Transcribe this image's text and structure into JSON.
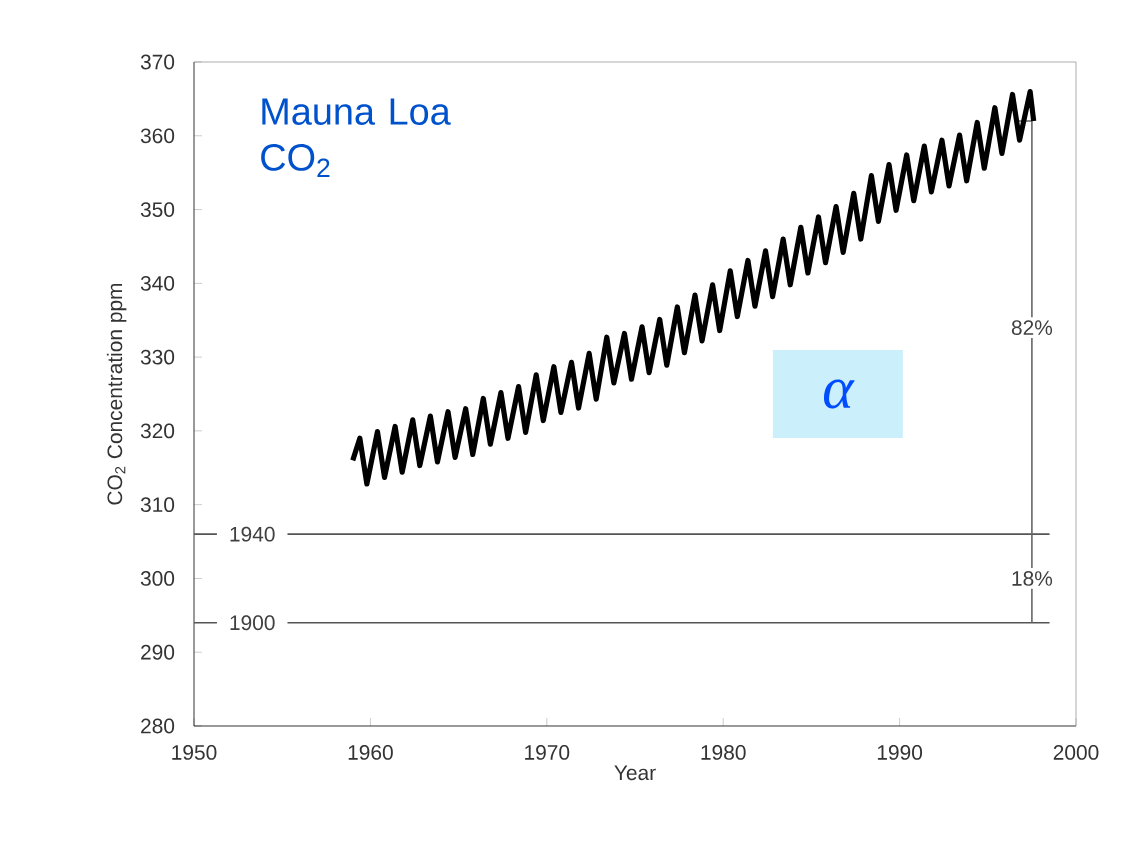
{
  "chart_data": {
    "type": "line",
    "title": "Mauna Loa CO$_{2}$",
    "xlabel": "Year",
    "ylabel": "CO$_{2}$ Concentration  ppm",
    "xlim": [
      1950,
      2000
    ],
    "xticks": [
      1950,
      1960,
      1970,
      1980,
      1990,
      2000
    ],
    "ylim": [
      280,
      370
    ],
    "yticks": [
      280,
      290,
      300,
      310,
      320,
      330,
      340,
      350,
      360,
      370
    ],
    "grid": false,
    "marker": "none",
    "line_style": "solid",
    "ref_lines": [
      {
        "axis": "y",
        "value": 306,
        "color": "#555555"
      },
      {
        "axis": "y",
        "value": 294,
        "color": "#555555"
      }
    ],
    "annotations": [
      "α",
      {
        "text": "1940",
        "y": 306
      },
      {
        "text": "1900",
        "y": 294
      },
      {
        "text": "82%",
        "x": 1997.5,
        "y": 334
      },
      {
        "text": "18%",
        "x": 1997.5,
        "y": 300
      }
    ],
    "series": [
      {
        "color": "#666666",
        "x": [
          1997.5,
          1997.5,
          1996.7
        ],
        "values": [
          294,
          362,
          362
        ]
      },
      {
        "color": "#000000",
        "x": [
          1959.0,
          1959.4,
          1959.8,
          1960.4,
          1960.8,
          1961.4,
          1961.8,
          1962.4,
          1962.8,
          1963.4,
          1963.8,
          1964.4,
          1964.8,
          1965.4,
          1965.8,
          1966.4,
          1966.8,
          1967.4,
          1967.8,
          1968.4,
          1968.8,
          1969.4,
          1969.8,
          1970.4,
          1970.8,
          1971.4,
          1971.8,
          1972.4,
          1972.8,
          1973.4,
          1973.8,
          1974.4,
          1974.8,
          1975.4,
          1975.8,
          1976.4,
          1976.8,
          1977.4,
          1977.8,
          1978.4,
          1978.8,
          1979.4,
          1979.8,
          1980.4,
          1980.8,
          1981.4,
          1981.8,
          1982.4,
          1982.8,
          1983.4,
          1983.8,
          1984.4,
          1984.8,
          1985.4,
          1985.8,
          1986.4,
          1986.8,
          1987.4,
          1987.8,
          1988.4,
          1988.8,
          1989.4,
          1989.8,
          1990.4,
          1990.8,
          1991.4,
          1991.8,
          1992.4,
          1992.8,
          1993.4,
          1993.8,
          1994.4,
          1994.8,
          1995.4,
          1995.8,
          1996.4,
          1996.8,
          1997.4,
          1997.6
        ],
        "values": [
          316.0,
          319.0,
          312.8,
          319.9,
          313.7,
          320.6,
          314.4,
          321.5,
          315.3,
          322.0,
          315.8,
          322.6,
          316.4,
          323.0,
          316.8,
          324.4,
          318.2,
          325.2,
          319.0,
          326.0,
          319.8,
          327.6,
          321.4,
          328.7,
          322.5,
          329.3,
          323.1,
          330.5,
          324.3,
          332.7,
          326.5,
          333.2,
          327.0,
          334.1,
          327.9,
          335.1,
          328.9,
          336.8,
          330.6,
          338.4,
          332.2,
          339.8,
          333.6,
          341.7,
          335.5,
          343.1,
          336.9,
          344.4,
          338.2,
          346.0,
          339.8,
          347.6,
          341.4,
          349.0,
          342.8,
          350.4,
          344.2,
          352.2,
          346.0,
          354.6,
          348.4,
          356.1,
          349.9,
          357.4,
          351.2,
          358.6,
          352.4,
          359.4,
          353.2,
          360.1,
          353.9,
          361.8,
          355.6,
          363.8,
          357.6,
          365.6,
          359.4,
          366.0,
          362.0
        ]
      }
    ]
  }
}
